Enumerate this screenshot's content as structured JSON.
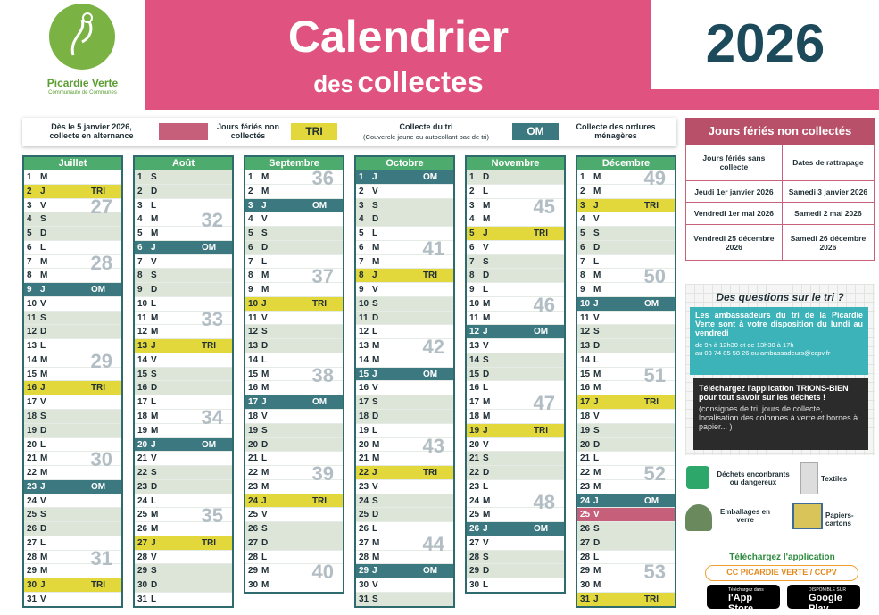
{
  "header": {
    "logo_name": "Picardie Verte",
    "logo_sub": "Communauté de Communes",
    "title": "Calendrier",
    "subtitle_small": "des",
    "subtitle": "collectes",
    "year": "2026"
  },
  "legend": {
    "alternance": "Dès le 5 janvier 2026, collecte en alternance",
    "feries": "Jours fériés non collectés",
    "tri_tag": "TRI",
    "tri_label": "Collecte du tri",
    "tri_note": "(Couvercle jaune ou autocollant bac de tri)",
    "om_tag": "OM",
    "om_label": "Collecte des ordures ménagères"
  },
  "months": [
    {
      "name": "Juillet",
      "days": [
        {
          "d": "1",
          "w": "M"
        },
        {
          "d": "2",
          "w": "J",
          "c": "TRI"
        },
        {
          "d": "3",
          "w": "V",
          "k": "27"
        },
        {
          "d": "4",
          "w": "S"
        },
        {
          "d": "5",
          "w": "D"
        },
        {
          "d": "6",
          "w": "L"
        },
        {
          "d": "7",
          "w": "M",
          "k": "28"
        },
        {
          "d": "8",
          "w": "M"
        },
        {
          "d": "9",
          "w": "J",
          "c": "OM"
        },
        {
          "d": "10",
          "w": "V"
        },
        {
          "d": "11",
          "w": "S"
        },
        {
          "d": "12",
          "w": "D"
        },
        {
          "d": "13",
          "w": "L"
        },
        {
          "d": "14",
          "w": "M",
          "k": "29"
        },
        {
          "d": "15",
          "w": "M"
        },
        {
          "d": "16",
          "w": "J",
          "c": "TRI"
        },
        {
          "d": "17",
          "w": "V"
        },
        {
          "d": "18",
          "w": "S"
        },
        {
          "d": "19",
          "w": "D"
        },
        {
          "d": "20",
          "w": "L"
        },
        {
          "d": "21",
          "w": "M",
          "k": "30"
        },
        {
          "d": "22",
          "w": "M"
        },
        {
          "d": "23",
          "w": "J",
          "c": "OM"
        },
        {
          "d": "24",
          "w": "V"
        },
        {
          "d": "25",
          "w": "S"
        },
        {
          "d": "26",
          "w": "D"
        },
        {
          "d": "27",
          "w": "L"
        },
        {
          "d": "28",
          "w": "M",
          "k": "31"
        },
        {
          "d": "29",
          "w": "M"
        },
        {
          "d": "30",
          "w": "J",
          "c": "TRI"
        },
        {
          "d": "31",
          "w": "V"
        }
      ]
    },
    {
      "name": "Août",
      "days": [
        {
          "d": "1",
          "w": "S"
        },
        {
          "d": "2",
          "w": "D"
        },
        {
          "d": "3",
          "w": "L"
        },
        {
          "d": "4",
          "w": "M",
          "k": "32"
        },
        {
          "d": "5",
          "w": "M"
        },
        {
          "d": "6",
          "w": "J",
          "c": "OM"
        },
        {
          "d": "7",
          "w": "V"
        },
        {
          "d": "8",
          "w": "S"
        },
        {
          "d": "9",
          "w": "D"
        },
        {
          "d": "10",
          "w": "L"
        },
        {
          "d": "11",
          "w": "M",
          "k": "33"
        },
        {
          "d": "12",
          "w": "M"
        },
        {
          "d": "13",
          "w": "J",
          "c": "TRI"
        },
        {
          "d": "14",
          "w": "V"
        },
        {
          "d": "15",
          "w": "S"
        },
        {
          "d": "16",
          "w": "D"
        },
        {
          "d": "17",
          "w": "L"
        },
        {
          "d": "18",
          "w": "M",
          "k": "34"
        },
        {
          "d": "19",
          "w": "M"
        },
        {
          "d": "20",
          "w": "J",
          "c": "OM"
        },
        {
          "d": "21",
          "w": "V"
        },
        {
          "d": "22",
          "w": "S"
        },
        {
          "d": "23",
          "w": "D"
        },
        {
          "d": "24",
          "w": "L"
        },
        {
          "d": "25",
          "w": "M",
          "k": "35"
        },
        {
          "d": "26",
          "w": "M"
        },
        {
          "d": "27",
          "w": "J",
          "c": "TRI"
        },
        {
          "d": "28",
          "w": "V"
        },
        {
          "d": "29",
          "w": "S"
        },
        {
          "d": "30",
          "w": "D"
        },
        {
          "d": "31",
          "w": "L"
        }
      ]
    },
    {
      "name": "Septembre",
      "days": [
        {
          "d": "1",
          "w": "M",
          "k": "36"
        },
        {
          "d": "2",
          "w": "M"
        },
        {
          "d": "3",
          "w": "J",
          "c": "OM"
        },
        {
          "d": "4",
          "w": "V"
        },
        {
          "d": "5",
          "w": "S"
        },
        {
          "d": "6",
          "w": "D"
        },
        {
          "d": "7",
          "w": "L"
        },
        {
          "d": "8",
          "w": "M",
          "k": "37"
        },
        {
          "d": "9",
          "w": "M"
        },
        {
          "d": "10",
          "w": "J",
          "c": "TRI"
        },
        {
          "d": "11",
          "w": "V"
        },
        {
          "d": "12",
          "w": "S"
        },
        {
          "d": "13",
          "w": "D"
        },
        {
          "d": "14",
          "w": "L"
        },
        {
          "d": "15",
          "w": "M",
          "k": "38"
        },
        {
          "d": "16",
          "w": "M"
        },
        {
          "d": "17",
          "w": "J",
          "c": "OM"
        },
        {
          "d": "18",
          "w": "V"
        },
        {
          "d": "19",
          "w": "S"
        },
        {
          "d": "20",
          "w": "D"
        },
        {
          "d": "21",
          "w": "L"
        },
        {
          "d": "22",
          "w": "M",
          "k": "39"
        },
        {
          "d": "23",
          "w": "M"
        },
        {
          "d": "24",
          "w": "J",
          "c": "TRI"
        },
        {
          "d": "25",
          "w": "V"
        },
        {
          "d": "26",
          "w": "S"
        },
        {
          "d": "27",
          "w": "D"
        },
        {
          "d": "28",
          "w": "L"
        },
        {
          "d": "29",
          "w": "M",
          "k": "40"
        },
        {
          "d": "30",
          "w": "M"
        }
      ]
    },
    {
      "name": "Octobre",
      "days": [
        {
          "d": "1",
          "w": "J",
          "c": "OM"
        },
        {
          "d": "2",
          "w": "V"
        },
        {
          "d": "3",
          "w": "S"
        },
        {
          "d": "4",
          "w": "D"
        },
        {
          "d": "5",
          "w": "L"
        },
        {
          "d": "6",
          "w": "M",
          "k": "41"
        },
        {
          "d": "7",
          "w": "M"
        },
        {
          "d": "8",
          "w": "J",
          "c": "TRI"
        },
        {
          "d": "9",
          "w": "V"
        },
        {
          "d": "10",
          "w": "S"
        },
        {
          "d": "11",
          "w": "D"
        },
        {
          "d": "12",
          "w": "L"
        },
        {
          "d": "13",
          "w": "M",
          "k": "42"
        },
        {
          "d": "14",
          "w": "M"
        },
        {
          "d": "15",
          "w": "J",
          "c": "OM"
        },
        {
          "d": "16",
          "w": "V"
        },
        {
          "d": "17",
          "w": "S"
        },
        {
          "d": "18",
          "w": "D"
        },
        {
          "d": "19",
          "w": "L"
        },
        {
          "d": "20",
          "w": "M",
          "k": "43"
        },
        {
          "d": "21",
          "w": "M"
        },
        {
          "d": "22",
          "w": "J",
          "c": "TRI"
        },
        {
          "d": "23",
          "w": "V"
        },
        {
          "d": "24",
          "w": "S"
        },
        {
          "d": "25",
          "w": "D"
        },
        {
          "d": "26",
          "w": "L"
        },
        {
          "d": "27",
          "w": "M",
          "k": "44"
        },
        {
          "d": "28",
          "w": "M"
        },
        {
          "d": "29",
          "w": "J",
          "c": "OM"
        },
        {
          "d": "30",
          "w": "V"
        },
        {
          "d": "31",
          "w": "S"
        }
      ]
    },
    {
      "name": "Novembre",
      "days": [
        {
          "d": "1",
          "w": "D"
        },
        {
          "d": "2",
          "w": "L"
        },
        {
          "d": "3",
          "w": "M",
          "k": "45"
        },
        {
          "d": "4",
          "w": "M"
        },
        {
          "d": "5",
          "w": "J",
          "c": "TRI"
        },
        {
          "d": "6",
          "w": "V"
        },
        {
          "d": "7",
          "w": "S"
        },
        {
          "d": "8",
          "w": "D"
        },
        {
          "d": "9",
          "w": "L"
        },
        {
          "d": "10",
          "w": "M",
          "k": "46"
        },
        {
          "d": "11",
          "w": "M"
        },
        {
          "d": "12",
          "w": "J",
          "c": "OM"
        },
        {
          "d": "13",
          "w": "V"
        },
        {
          "d": "14",
          "w": "S"
        },
        {
          "d": "15",
          "w": "D"
        },
        {
          "d": "16",
          "w": "L"
        },
        {
          "d": "17",
          "w": "M",
          "k": "47"
        },
        {
          "d": "18",
          "w": "M"
        },
        {
          "d": "19",
          "w": "J",
          "c": "TRI"
        },
        {
          "d": "20",
          "w": "V"
        },
        {
          "d": "21",
          "w": "S"
        },
        {
          "d": "22",
          "w": "D"
        },
        {
          "d": "23",
          "w": "L"
        },
        {
          "d": "24",
          "w": "M",
          "k": "48"
        },
        {
          "d": "25",
          "w": "M"
        },
        {
          "d": "26",
          "w": "J",
          "c": "OM"
        },
        {
          "d": "27",
          "w": "V"
        },
        {
          "d": "28",
          "w": "S"
        },
        {
          "d": "29",
          "w": "D"
        },
        {
          "d": "30",
          "w": "L"
        }
      ]
    },
    {
      "name": "Décembre",
      "days": [
        {
          "d": "1",
          "w": "M",
          "k": "49"
        },
        {
          "d": "2",
          "w": "M"
        },
        {
          "d": "3",
          "w": "J",
          "c": "TRI"
        },
        {
          "d": "4",
          "w": "V"
        },
        {
          "d": "5",
          "w": "S"
        },
        {
          "d": "6",
          "w": "D"
        },
        {
          "d": "7",
          "w": "L"
        },
        {
          "d": "8",
          "w": "M",
          "k": "50"
        },
        {
          "d": "9",
          "w": "M"
        },
        {
          "d": "10",
          "w": "J",
          "c": "OM"
        },
        {
          "d": "11",
          "w": "V"
        },
        {
          "d": "12",
          "w": "S"
        },
        {
          "d": "13",
          "w": "D"
        },
        {
          "d": "14",
          "w": "L"
        },
        {
          "d": "15",
          "w": "M",
          "k": "51"
        },
        {
          "d": "16",
          "w": "M"
        },
        {
          "d": "17",
          "w": "J",
          "c": "TRI"
        },
        {
          "d": "18",
          "w": "V"
        },
        {
          "d": "19",
          "w": "S"
        },
        {
          "d": "20",
          "w": "D"
        },
        {
          "d": "21",
          "w": "L"
        },
        {
          "d": "22",
          "w": "M",
          "k": "52"
        },
        {
          "d": "23",
          "w": "M"
        },
        {
          "d": "24",
          "w": "J",
          "c": "OM"
        },
        {
          "d": "25",
          "w": "V",
          "h": true
        },
        {
          "d": "26",
          "w": "S"
        },
        {
          "d": "27",
          "w": "D"
        },
        {
          "d": "28",
          "w": "L"
        },
        {
          "d": "29",
          "w": "M",
          "k": "53"
        },
        {
          "d": "30",
          "w": "M"
        },
        {
          "d": "31",
          "w": "J",
          "c": "TRI"
        }
      ]
    }
  ],
  "holidays": {
    "title": "Jours fériés non collectés",
    "head": [
      "Jours fériés sans collecte",
      "Dates de rattrapage"
    ],
    "rows": [
      [
        "Jeudi 1er janvier 2026",
        "Samedi 3 janvier 2026"
      ],
      [
        "Vendredi 1er mai 2026",
        "Samedi 2 mai 2026"
      ],
      [
        "Vendredi 25 décembre 2026",
        "Samedi 26 décembre 2026"
      ]
    ]
  },
  "questions": {
    "title": "Des questions sur le tri ?",
    "text": "Les ambassadeurs du tri de la Picardie Verte sont à votre disposition du lundi au vendredi",
    "hours": "de 9h à 12h30 et de 13h30 à 17h",
    "contact": "au 03 74 85 58 26 ou ambassadeurs@ccpv.fr",
    "app": "Téléchargez l'application TRIONS-BIEN pour tout savoir sur les déchets !",
    "app_note": "(consignes de tri, jours de collecte, localisation des colonnes à verre et bornes à papier... )"
  },
  "points": [
    "Déchets enconbrants ou dangereux",
    "Textiles",
    "Emballages en verre",
    "Papiers-cartons"
  ],
  "download": {
    "title": "Téléchargez l'application",
    "search": "CC PICARDIE VERTE / CCPV",
    "apple_small": "Téléchargez dans",
    "apple": "l'App Store",
    "google_small": "DISPONIBLE SUR",
    "google": "Google Play"
  }
}
